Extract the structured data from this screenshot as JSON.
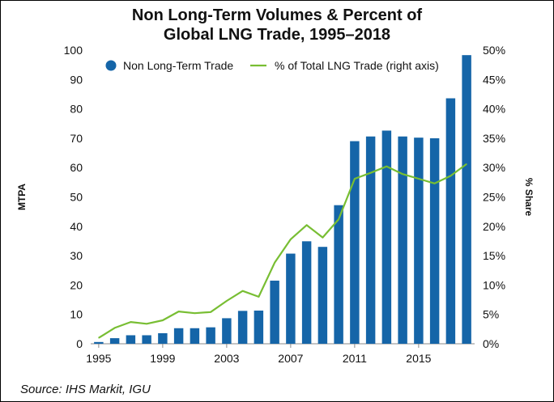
{
  "chart_data": {
    "type": "bar",
    "title_lines": [
      "Non Long-Term Volumes & Percent of",
      "Global LNG Trade, 1995–2018"
    ],
    "source": "Source: IHS Markit, IGU",
    "ylabel": "MTPA",
    "y2label": "% Share",
    "ylim": [
      0,
      100
    ],
    "y2lim": [
      0,
      50
    ],
    "y_ticks": [
      "0",
      "10",
      "20",
      "30",
      "40",
      "50",
      "60",
      "70",
      "80",
      "90",
      "100"
    ],
    "y2_ticks": [
      "0%",
      "5%",
      "10%",
      "15%",
      "20%",
      "25%",
      "30%",
      "35%",
      "40%",
      "45%",
      "50%"
    ],
    "x_tick_labels": [
      "1995",
      "1999",
      "2003",
      "2007",
      "2011",
      "2015"
    ],
    "categories": [
      1995,
      1996,
      1997,
      1998,
      1999,
      2000,
      2001,
      2002,
      2003,
      2004,
      2005,
      2006,
      2007,
      2008,
      2009,
      2010,
      2011,
      2012,
      2013,
      2014,
      2015,
      2016,
      2017,
      2018
    ],
    "series": [
      {
        "name": "Non Long-Term Trade",
        "type": "bar",
        "axis": "left",
        "color": "#1565A8",
        "values": [
          0.6,
          1.9,
          2.9,
          2.9,
          3.6,
          5.3,
          5.3,
          5.6,
          8.7,
          11.2,
          11.3,
          21.5,
          30.7,
          34.9,
          33.0,
          47.2,
          69.0,
          70.6,
          72.6,
          70.6,
          70.2,
          70.0,
          83.6,
          98.3
        ]
      },
      {
        "name": "% of Total LNG Trade (right axis)",
        "type": "line",
        "axis": "right",
        "color": "#78BE33",
        "values": [
          1.0,
          2.7,
          3.7,
          3.4,
          4.0,
          5.5,
          5.2,
          5.4,
          7.3,
          9.0,
          8.0,
          13.8,
          17.8,
          20.2,
          18.1,
          21.2,
          28.1,
          29.1,
          30.2,
          28.9,
          28.1,
          27.3,
          28.6,
          30.6
        ]
      }
    ]
  }
}
